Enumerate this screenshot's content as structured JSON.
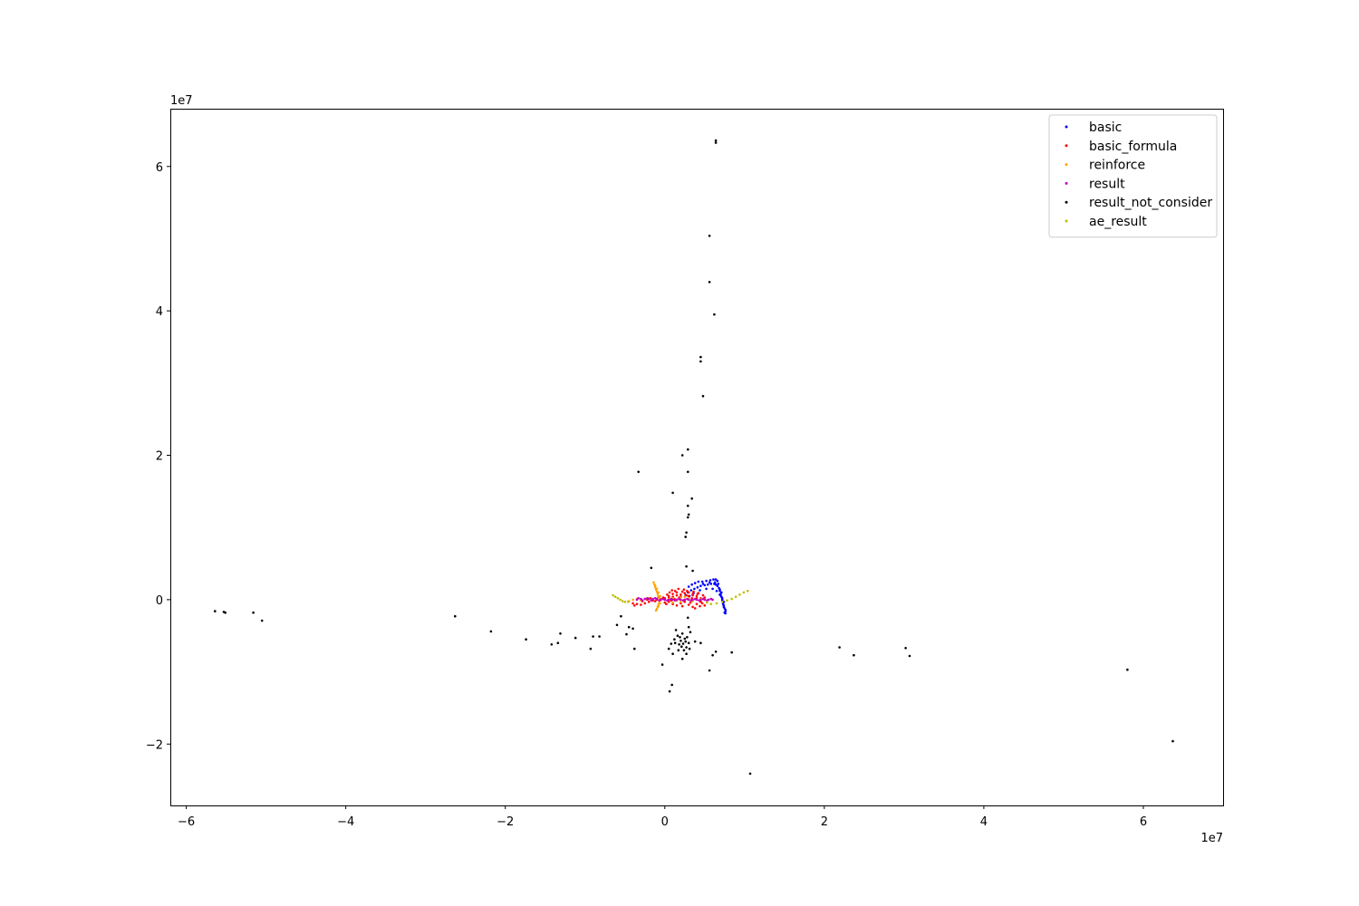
{
  "chart_data": {
    "type": "scatter",
    "x_multiplier": "1e7",
    "y_multiplier": "1e7",
    "xlim": [
      -6.2,
      7.0
    ],
    "ylim": [
      -2.85,
      6.8
    ],
    "x_ticks": [
      {
        "value": -6,
        "label": "−6"
      },
      {
        "value": -4,
        "label": "−4"
      },
      {
        "value": -2,
        "label": "−2"
      },
      {
        "value": 0,
        "label": "0"
      },
      {
        "value": 2,
        "label": "2"
      },
      {
        "value": 4,
        "label": "4"
      },
      {
        "value": 6,
        "label": "6"
      }
    ],
    "y_ticks": [
      {
        "value": -2,
        "label": "−2"
      },
      {
        "value": 0,
        "label": "0"
      },
      {
        "value": 2,
        "label": "2"
      },
      {
        "value": 4,
        "label": "4"
      },
      {
        "value": 6,
        "label": "6"
      }
    ],
    "legend_position": "top-right",
    "grid": false,
    "series": [
      {
        "name": "basic",
        "color": "#0000ff",
        "points": [
          [
            0.29,
            0.1
          ],
          [
            0.33,
            0.13
          ],
          [
            0.37,
            0.15
          ],
          [
            0.41,
            0.17
          ],
          [
            0.45,
            0.19
          ],
          [
            0.5,
            0.2
          ],
          [
            0.54,
            0.21
          ],
          [
            0.58,
            0.22
          ],
          [
            0.62,
            0.22
          ],
          [
            0.64,
            0.21
          ],
          [
            0.66,
            0.19
          ],
          [
            0.68,
            0.16
          ],
          [
            0.69,
            0.12
          ],
          [
            0.7,
            0.08
          ],
          [
            0.71,
            0.04
          ],
          [
            0.72,
            0.0
          ],
          [
            0.73,
            -0.04
          ],
          [
            0.74,
            -0.08
          ],
          [
            0.75,
            -0.12
          ],
          [
            0.76,
            -0.16
          ],
          [
            0.76,
            -0.19
          ],
          [
            0.3,
            0.18
          ],
          [
            0.34,
            0.21
          ],
          [
            0.38,
            0.23
          ],
          [
            0.42,
            0.25
          ],
          [
            0.47,
            0.25
          ],
          [
            0.52,
            0.26
          ],
          [
            0.57,
            0.27
          ],
          [
            0.61,
            0.28
          ],
          [
            0.64,
            0.28
          ],
          [
            0.66,
            0.26
          ],
          [
            0.67,
            0.22
          ],
          [
            0.69,
            0.14
          ],
          [
            0.7,
            0.06
          ],
          [
            0.72,
            -0.02
          ],
          [
            0.74,
            -0.1
          ],
          [
            0.76,
            -0.14
          ],
          [
            0.75,
            -0.18
          ],
          [
            0.73,
            -0.06
          ],
          [
            0.71,
            0.1
          ],
          [
            0.26,
            0.06
          ],
          [
            0.31,
            0.05
          ],
          [
            0.36,
            0.09
          ],
          [
            0.44,
            0.13
          ],
          [
            0.52,
            0.15
          ],
          [
            0.6,
            0.15
          ],
          [
            0.65,
            0.12
          ],
          [
            0.69,
            0.07
          ],
          [
            0.72,
            0.02
          ],
          [
            0.74,
            -0.03
          ],
          [
            0.63,
            0.24
          ],
          [
            0.56,
            0.24
          ],
          [
            0.48,
            0.22
          ]
        ]
      },
      {
        "name": "basic_formula",
        "color": "#ff0000",
        "points": [
          [
            -0.4,
            -0.05
          ],
          [
            -0.35,
            -0.06
          ],
          [
            -0.3,
            -0.07
          ],
          [
            -0.25,
            -0.05
          ],
          [
            -0.2,
            -0.03
          ],
          [
            -0.15,
            -0.01
          ],
          [
            -0.1,
            0.0
          ],
          [
            -0.05,
            0.01
          ],
          [
            0.0,
            0.02
          ],
          [
            0.05,
            0.03
          ],
          [
            0.1,
            0.04
          ],
          [
            0.15,
            0.06
          ],
          [
            0.2,
            0.07
          ],
          [
            0.25,
            0.09
          ],
          [
            0.3,
            0.1
          ],
          [
            0.35,
            0.06
          ],
          [
            0.4,
            0.02
          ],
          [
            0.45,
            -0.03
          ],
          [
            0.5,
            -0.08
          ],
          [
            0.45,
            -0.02
          ],
          [
            0.4,
            0.05
          ],
          [
            0.35,
            0.08
          ],
          [
            0.3,
            0.05
          ],
          [
            0.25,
            0.0
          ],
          [
            0.2,
            -0.05
          ],
          [
            0.15,
            -0.08
          ],
          [
            0.1,
            -0.06
          ],
          [
            0.05,
            -0.03
          ],
          [
            0.0,
            -0.04
          ],
          [
            0.05,
            0.05
          ],
          [
            0.1,
            0.08
          ],
          [
            0.15,
            0.1
          ],
          [
            0.2,
            0.04
          ],
          [
            0.25,
            -0.03
          ],
          [
            0.3,
            -0.07
          ],
          [
            0.35,
            -0.1
          ],
          [
            0.4,
            -0.06
          ],
          [
            0.45,
            0.02
          ],
          [
            0.48,
            0.06
          ],
          [
            0.42,
            0.09
          ],
          [
            0.36,
            0.11
          ],
          [
            0.28,
            0.12
          ],
          [
            0.22,
            0.11
          ],
          [
            0.18,
            0.03
          ],
          [
            0.12,
            0.01
          ],
          [
            0.08,
            -0.01
          ],
          [
            0.03,
            0.07
          ],
          [
            0.13,
            0.12
          ],
          [
            0.24,
            0.14
          ],
          [
            0.34,
            0.02
          ],
          [
            0.44,
            -0.09
          ],
          [
            0.38,
            -0.12
          ],
          [
            -0.08,
            0.04
          ],
          [
            -0.18,
            0.02
          ],
          [
            -0.28,
            -0.02
          ],
          [
            -0.38,
            -0.08
          ],
          [
            0.02,
            -0.06
          ],
          [
            0.09,
            0.13
          ],
          [
            0.17,
            0.15
          ],
          [
            0.27,
            0.06
          ],
          [
            0.32,
            -0.04
          ],
          [
            0.41,
            0.08
          ],
          [
            0.47,
            -0.05
          ],
          [
            0.5,
            0.03
          ],
          [
            0.22,
            -0.09
          ],
          [
            0.06,
            0.1
          ],
          [
            -0.02,
            0.03
          ],
          [
            -0.12,
            -0.02
          ],
          [
            -0.22,
            0.0
          ],
          [
            0.15,
            0.0
          ]
        ]
      },
      {
        "name": "reinforce",
        "color": "#ffa500",
        "points": [
          [
            -0.14,
            0.24
          ],
          [
            -0.13,
            0.21
          ],
          [
            -0.12,
            0.17
          ],
          [
            -0.11,
            0.14
          ],
          [
            -0.1,
            0.11
          ],
          [
            -0.09,
            0.08
          ],
          [
            -0.08,
            0.05
          ],
          [
            -0.07,
            0.02
          ],
          [
            -0.06,
            -0.01
          ],
          [
            -0.07,
            -0.04
          ],
          [
            -0.08,
            -0.07
          ],
          [
            -0.09,
            -0.1
          ],
          [
            -0.1,
            -0.13
          ],
          [
            -0.11,
            -0.15
          ],
          [
            -0.12,
            0.19
          ],
          [
            -0.1,
            0.15
          ],
          [
            -0.08,
            0.1
          ],
          [
            -0.06,
            0.05
          ],
          [
            -0.05,
            0.0
          ],
          [
            -0.06,
            -0.05
          ],
          [
            -0.08,
            -0.09
          ],
          [
            -0.3,
            -0.01
          ],
          [
            -0.25,
            0.01
          ],
          [
            -0.2,
            0.02
          ],
          [
            0.05,
            0.01
          ],
          [
            0.1,
            0.02
          ],
          [
            0.15,
            -0.01
          ],
          [
            0.2,
            0.03
          ],
          [
            0.25,
            0.04
          ],
          [
            0.3,
            0.02
          ],
          [
            0.35,
            -0.02
          ],
          [
            0.4,
            0.0
          ],
          [
            0.45,
            0.01
          ],
          [
            0.2,
            -0.03
          ],
          [
            0.1,
            -0.04
          ],
          [
            -0.45,
            -0.02
          ],
          [
            -0.4,
            0.0
          ],
          [
            -0.35,
            0.01
          ]
        ]
      },
      {
        "name": "result",
        "color": "#bf00bf",
        "points": [
          [
            -0.35,
            0.0
          ],
          [
            -0.3,
            0.01
          ],
          [
            -0.25,
            0.01
          ],
          [
            -0.2,
            0.01
          ],
          [
            -0.15,
            0.01
          ],
          [
            -0.1,
            0.01
          ],
          [
            -0.05,
            0.0
          ],
          [
            0.0,
            0.0
          ],
          [
            0.05,
            0.0
          ],
          [
            0.1,
            0.0
          ],
          [
            0.15,
            0.0
          ],
          [
            0.2,
            0.0
          ],
          [
            0.25,
            0.0
          ],
          [
            0.3,
            0.0
          ],
          [
            0.35,
            0.0
          ],
          [
            0.4,
            0.0
          ],
          [
            0.45,
            0.0
          ],
          [
            0.5,
            0.0
          ],
          [
            0.55,
            0.0
          ],
          [
            0.6,
            0.0
          ],
          [
            -0.33,
            0.02
          ],
          [
            -0.28,
            -0.01
          ],
          [
            -0.22,
            0.02
          ],
          [
            -0.17,
            -0.01
          ],
          [
            -0.12,
            0.02
          ],
          [
            -0.07,
            -0.01
          ],
          [
            -0.02,
            0.01
          ],
          [
            0.03,
            -0.01
          ],
          [
            0.08,
            0.01
          ],
          [
            0.13,
            -0.01
          ],
          [
            0.18,
            0.01
          ],
          [
            0.23,
            -0.01
          ],
          [
            0.28,
            0.01
          ],
          [
            0.33,
            -0.01
          ],
          [
            0.38,
            0.01
          ],
          [
            0.43,
            -0.01
          ],
          [
            0.48,
            0.01
          ],
          [
            0.53,
            -0.01
          ],
          [
            0.58,
            0.01
          ]
        ]
      },
      {
        "name": "result_not_consider",
        "color": "#000000",
        "points": [
          [
            0.64,
            6.33
          ],
          [
            0.64,
            6.36
          ],
          [
            0.56,
            5.04
          ],
          [
            0.56,
            4.4
          ],
          [
            0.62,
            3.95
          ],
          [
            0.45,
            3.36
          ],
          [
            0.45,
            3.3
          ],
          [
            0.48,
            2.82
          ],
          [
            0.29,
            2.08
          ],
          [
            0.22,
            2.0
          ],
          [
            0.29,
            1.77
          ],
          [
            -0.33,
            1.77
          ],
          [
            0.1,
            1.48
          ],
          [
            0.34,
            1.4
          ],
          [
            0.29,
            1.3
          ],
          [
            0.3,
            1.18
          ],
          [
            0.29,
            1.14
          ],
          [
            0.27,
            0.93
          ],
          [
            0.26,
            0.87
          ],
          [
            -0.17,
            0.44
          ],
          [
            0.27,
            0.46
          ],
          [
            0.35,
            0.4
          ],
          [
            -5.64,
            -0.16
          ],
          [
            -5.53,
            -0.17
          ],
          [
            -5.51,
            -0.18
          ],
          [
            -5.16,
            -0.18
          ],
          [
            -5.05,
            -0.29
          ],
          [
            -2.63,
            -0.23
          ],
          [
            -2.18,
            -0.44
          ],
          [
            -1.74,
            -0.55
          ],
          [
            -1.42,
            -0.62
          ],
          [
            -1.34,
            -0.6
          ],
          [
            -1.31,
            -0.47
          ],
          [
            -1.12,
            -0.53
          ],
          [
            -0.93,
            -0.68
          ],
          [
            -0.9,
            -0.51
          ],
          [
            -0.82,
            -0.51
          ],
          [
            -0.55,
            -0.23
          ],
          [
            -0.48,
            -0.48
          ],
          [
            -0.4,
            -0.4
          ],
          [
            -0.38,
            -0.68
          ],
          [
            -0.45,
            -0.38
          ],
          [
            -0.6,
            -0.35
          ],
          [
            0.05,
            -0.68
          ],
          [
            0.08,
            -0.61
          ],
          [
            0.1,
            -0.75
          ],
          [
            0.12,
            -0.55
          ],
          [
            0.14,
            -0.42
          ],
          [
            0.16,
            -0.5
          ],
          [
            0.18,
            -0.62
          ],
          [
            0.2,
            -0.57
          ],
          [
            0.22,
            -0.47
          ],
          [
            0.24,
            -0.7
          ],
          [
            0.26,
            -0.58
          ],
          [
            0.28,
            -0.52
          ],
          [
            0.3,
            -0.6
          ],
          [
            0.32,
            -0.45
          ],
          [
            0.17,
            -0.7
          ],
          [
            0.21,
            -0.65
          ],
          [
            0.25,
            -0.54
          ],
          [
            0.27,
            -0.66
          ],
          [
            0.13,
            -0.6
          ],
          [
            0.19,
            -0.52
          ],
          [
            0.23,
            -0.61
          ],
          [
            0.3,
            -0.38
          ],
          [
            0.31,
            -0.68
          ],
          [
            0.22,
            -0.82
          ],
          [
            0.27,
            -0.75
          ],
          [
            0.29,
            -0.25
          ],
          [
            0.38,
            -0.58
          ],
          [
            0.45,
            -0.6
          ],
          [
            0.6,
            -0.77
          ],
          [
            0.64,
            -0.72
          ],
          [
            0.56,
            -0.98
          ],
          [
            0.84,
            -0.73
          ],
          [
            -0.03,
            -0.9
          ],
          [
            0.06,
            -1.27
          ],
          [
            0.09,
            -1.18
          ],
          [
            1.07,
            -2.41
          ],
          [
            2.19,
            -0.66
          ],
          [
            2.37,
            -0.77
          ],
          [
            3.02,
            -0.67
          ],
          [
            3.07,
            -0.78
          ],
          [
            5.8,
            -0.97
          ],
          [
            6.37,
            -1.96
          ]
        ]
      },
      {
        "name": "ae_result",
        "color": "#bfbf00",
        "points": [
          [
            -0.65,
            0.06
          ],
          [
            -0.62,
            0.04
          ],
          [
            -0.59,
            0.02
          ],
          [
            -0.56,
            0.0
          ],
          [
            -0.53,
            -0.02
          ],
          [
            -0.5,
            -0.03
          ],
          [
            -0.46,
            -0.03
          ],
          [
            0.53,
            -0.04
          ],
          [
            0.58,
            -0.06
          ],
          [
            0.65,
            -0.05
          ],
          [
            0.72,
            -0.03
          ],
          [
            0.78,
            -0.01
          ],
          [
            0.84,
            0.01
          ],
          [
            0.89,
            0.04
          ],
          [
            0.94,
            0.07
          ],
          [
            0.99,
            0.1
          ],
          [
            1.04,
            0.12
          ]
        ]
      }
    ]
  }
}
